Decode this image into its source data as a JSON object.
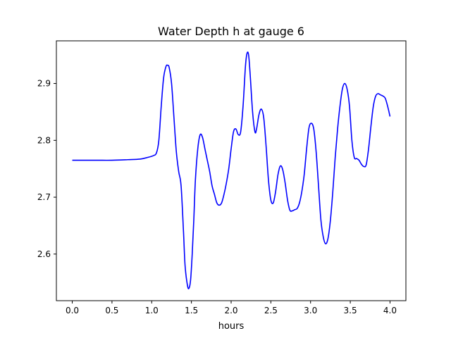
{
  "chart_data": {
    "type": "line",
    "title": "Water Depth h at gauge 6",
    "xlabel": "hours",
    "ylabel": "",
    "xlim": [
      -0.2,
      4.2
    ],
    "ylim": [
      2.518,
      2.975
    ],
    "xticks": [
      0.0,
      0.5,
      1.0,
      1.5,
      2.0,
      2.5,
      3.0,
      3.5,
      4.0
    ],
    "xtick_labels": [
      "0.0",
      "0.5",
      "1.0",
      "1.5",
      "2.0",
      "2.5",
      "3.0",
      "3.5",
      "4.0"
    ],
    "yticks": [
      2.6,
      2.7,
      2.8,
      2.9
    ],
    "ytick_labels": [
      "2.6",
      "2.7",
      "2.8",
      "2.9"
    ],
    "grid": false,
    "legend": "none",
    "series": [
      {
        "color": "#0000ff",
        "x": [
          0.0,
          0.3,
          0.5,
          0.7,
          0.85,
          0.95,
          1.02,
          1.06,
          1.09,
          1.12,
          1.15,
          1.18,
          1.2,
          1.22,
          1.25,
          1.28,
          1.31,
          1.34,
          1.37,
          1.4,
          1.42,
          1.45,
          1.47,
          1.49,
          1.51,
          1.53,
          1.55,
          1.58,
          1.61,
          1.64,
          1.67,
          1.7,
          1.73,
          1.76,
          1.79,
          1.82,
          1.85,
          1.88,
          1.91,
          1.94,
          1.97,
          2.0,
          2.03,
          2.06,
          2.09,
          2.12,
          2.15,
          2.18,
          2.2,
          2.22,
          2.24,
          2.27,
          2.3,
          2.32,
          2.35,
          2.38,
          2.41,
          2.44,
          2.47,
          2.5,
          2.53,
          2.56,
          2.59,
          2.62,
          2.65,
          2.68,
          2.71,
          2.74,
          2.77,
          2.8,
          2.83,
          2.86,
          2.89,
          2.92,
          2.95,
          2.98,
          3.01,
          3.04,
          3.07,
          3.1,
          3.13,
          3.16,
          3.19,
          3.22,
          3.25,
          3.28,
          3.31,
          3.34,
          3.37,
          3.4,
          3.43,
          3.46,
          3.49,
          3.52,
          3.55,
          3.58,
          3.61,
          3.64,
          3.67,
          3.7,
          3.73,
          3.76,
          3.79,
          3.82,
          3.85,
          3.88,
          3.91,
          3.94,
          3.97,
          4.0
        ],
        "y": [
          2.765,
          2.765,
          2.765,
          2.766,
          2.767,
          2.77,
          2.773,
          2.778,
          2.8,
          2.86,
          2.91,
          2.93,
          2.932,
          2.928,
          2.9,
          2.84,
          2.78,
          2.745,
          2.72,
          2.64,
          2.58,
          2.545,
          2.54,
          2.555,
          2.6,
          2.66,
          2.73,
          2.785,
          2.81,
          2.805,
          2.785,
          2.765,
          2.745,
          2.72,
          2.705,
          2.69,
          2.686,
          2.69,
          2.705,
          2.725,
          2.75,
          2.785,
          2.815,
          2.82,
          2.81,
          2.815,
          2.86,
          2.93,
          2.953,
          2.95,
          2.915,
          2.85,
          2.815,
          2.82,
          2.845,
          2.855,
          2.84,
          2.79,
          2.73,
          2.695,
          2.69,
          2.71,
          2.74,
          2.755,
          2.748,
          2.725,
          2.695,
          2.677,
          2.676,
          2.678,
          2.68,
          2.69,
          2.71,
          2.74,
          2.785,
          2.822,
          2.83,
          2.82,
          2.78,
          2.72,
          2.66,
          2.63,
          2.618,
          2.628,
          2.66,
          2.71,
          2.77,
          2.82,
          2.86,
          2.89,
          2.9,
          2.89,
          2.86,
          2.8,
          2.77,
          2.768,
          2.765,
          2.758,
          2.754,
          2.757,
          2.785,
          2.825,
          2.86,
          2.878,
          2.882,
          2.88,
          2.878,
          2.874,
          2.86,
          2.842
        ]
      }
    ]
  }
}
